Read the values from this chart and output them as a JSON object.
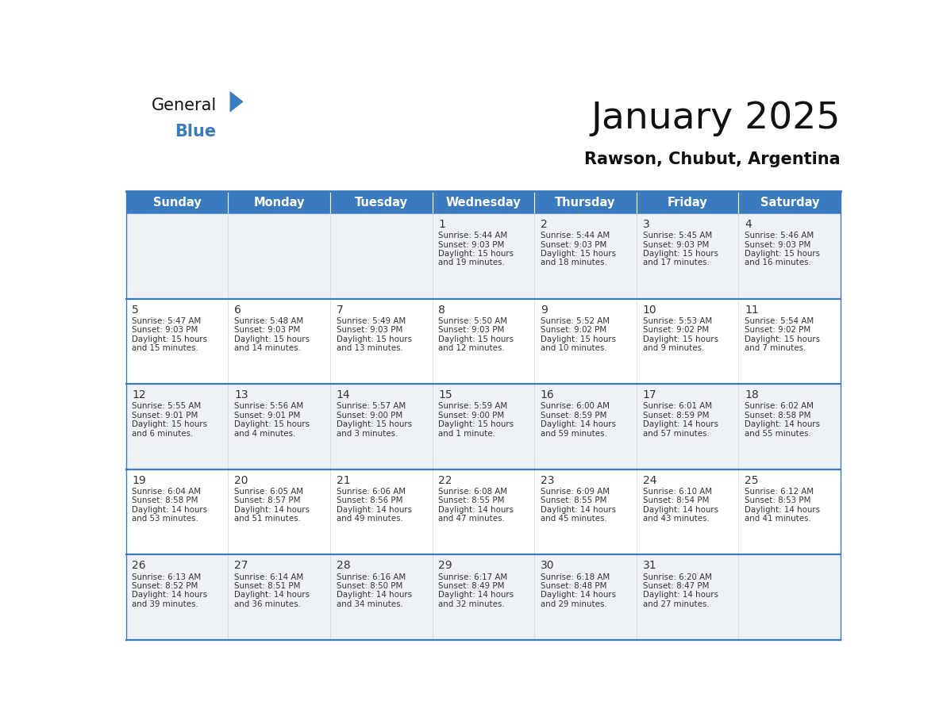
{
  "title": "January 2025",
  "subtitle": "Rawson, Chubut, Argentina",
  "days_of_week": [
    "Sunday",
    "Monday",
    "Tuesday",
    "Wednesday",
    "Thursday",
    "Friday",
    "Saturday"
  ],
  "header_bg": "#3a7bbf",
  "header_text": "#ffffff",
  "cell_bg_odd": "#eef2f7",
  "cell_bg_even": "#ffffff",
  "border_color": "#3a7bbf",
  "text_color": "#333333",
  "separator_color": "#3a7bbf",
  "calendar_data": [
    [
      null,
      null,
      null,
      {
        "day": 1,
        "sunrise": "5:44 AM",
        "sunset": "9:03 PM",
        "daylight_h": "15 hours",
        "daylight_m": "and 19 minutes."
      },
      {
        "day": 2,
        "sunrise": "5:44 AM",
        "sunset": "9:03 PM",
        "daylight_h": "15 hours",
        "daylight_m": "and 18 minutes."
      },
      {
        "day": 3,
        "sunrise": "5:45 AM",
        "sunset": "9:03 PM",
        "daylight_h": "15 hours",
        "daylight_m": "and 17 minutes."
      },
      {
        "day": 4,
        "sunrise": "5:46 AM",
        "sunset": "9:03 PM",
        "daylight_h": "15 hours",
        "daylight_m": "and 16 minutes."
      }
    ],
    [
      {
        "day": 5,
        "sunrise": "5:47 AM",
        "sunset": "9:03 PM",
        "daylight_h": "15 hours",
        "daylight_m": "and 15 minutes."
      },
      {
        "day": 6,
        "sunrise": "5:48 AM",
        "sunset": "9:03 PM",
        "daylight_h": "15 hours",
        "daylight_m": "and 14 minutes."
      },
      {
        "day": 7,
        "sunrise": "5:49 AM",
        "sunset": "9:03 PM",
        "daylight_h": "15 hours",
        "daylight_m": "and 13 minutes."
      },
      {
        "day": 8,
        "sunrise": "5:50 AM",
        "sunset": "9:03 PM",
        "daylight_h": "15 hours",
        "daylight_m": "and 12 minutes."
      },
      {
        "day": 9,
        "sunrise": "5:52 AM",
        "sunset": "9:02 PM",
        "daylight_h": "15 hours",
        "daylight_m": "and 10 minutes."
      },
      {
        "day": 10,
        "sunrise": "5:53 AM",
        "sunset": "9:02 PM",
        "daylight_h": "15 hours",
        "daylight_m": "and 9 minutes."
      },
      {
        "day": 11,
        "sunrise": "5:54 AM",
        "sunset": "9:02 PM",
        "daylight_h": "15 hours",
        "daylight_m": "and 7 minutes."
      }
    ],
    [
      {
        "day": 12,
        "sunrise": "5:55 AM",
        "sunset": "9:01 PM",
        "daylight_h": "15 hours",
        "daylight_m": "and 6 minutes."
      },
      {
        "day": 13,
        "sunrise": "5:56 AM",
        "sunset": "9:01 PM",
        "daylight_h": "15 hours",
        "daylight_m": "and 4 minutes."
      },
      {
        "day": 14,
        "sunrise": "5:57 AM",
        "sunset": "9:00 PM",
        "daylight_h": "15 hours",
        "daylight_m": "and 3 minutes."
      },
      {
        "day": 15,
        "sunrise": "5:59 AM",
        "sunset": "9:00 PM",
        "daylight_h": "15 hours",
        "daylight_m": "and 1 minute."
      },
      {
        "day": 16,
        "sunrise": "6:00 AM",
        "sunset": "8:59 PM",
        "daylight_h": "14 hours",
        "daylight_m": "and 59 minutes."
      },
      {
        "day": 17,
        "sunrise": "6:01 AM",
        "sunset": "8:59 PM",
        "daylight_h": "14 hours",
        "daylight_m": "and 57 minutes."
      },
      {
        "day": 18,
        "sunrise": "6:02 AM",
        "sunset": "8:58 PM",
        "daylight_h": "14 hours",
        "daylight_m": "and 55 minutes."
      }
    ],
    [
      {
        "day": 19,
        "sunrise": "6:04 AM",
        "sunset": "8:58 PM",
        "daylight_h": "14 hours",
        "daylight_m": "and 53 minutes."
      },
      {
        "day": 20,
        "sunrise": "6:05 AM",
        "sunset": "8:57 PM",
        "daylight_h": "14 hours",
        "daylight_m": "and 51 minutes."
      },
      {
        "day": 21,
        "sunrise": "6:06 AM",
        "sunset": "8:56 PM",
        "daylight_h": "14 hours",
        "daylight_m": "and 49 minutes."
      },
      {
        "day": 22,
        "sunrise": "6:08 AM",
        "sunset": "8:55 PM",
        "daylight_h": "14 hours",
        "daylight_m": "and 47 minutes."
      },
      {
        "day": 23,
        "sunrise": "6:09 AM",
        "sunset": "8:55 PM",
        "daylight_h": "14 hours",
        "daylight_m": "and 45 minutes."
      },
      {
        "day": 24,
        "sunrise": "6:10 AM",
        "sunset": "8:54 PM",
        "daylight_h": "14 hours",
        "daylight_m": "and 43 minutes."
      },
      {
        "day": 25,
        "sunrise": "6:12 AM",
        "sunset": "8:53 PM",
        "daylight_h": "14 hours",
        "daylight_m": "and 41 minutes."
      }
    ],
    [
      {
        "day": 26,
        "sunrise": "6:13 AM",
        "sunset": "8:52 PM",
        "daylight_h": "14 hours",
        "daylight_m": "and 39 minutes."
      },
      {
        "day": 27,
        "sunrise": "6:14 AM",
        "sunset": "8:51 PM",
        "daylight_h": "14 hours",
        "daylight_m": "and 36 minutes."
      },
      {
        "day": 28,
        "sunrise": "6:16 AM",
        "sunset": "8:50 PM",
        "daylight_h": "14 hours",
        "daylight_m": "and 34 minutes."
      },
      {
        "day": 29,
        "sunrise": "6:17 AM",
        "sunset": "8:49 PM",
        "daylight_h": "14 hours",
        "daylight_m": "and 32 minutes."
      },
      {
        "day": 30,
        "sunrise": "6:18 AM",
        "sunset": "8:48 PM",
        "daylight_h": "14 hours",
        "daylight_m": "and 29 minutes."
      },
      {
        "day": 31,
        "sunrise": "6:20 AM",
        "sunset": "8:47 PM",
        "daylight_h": "14 hours",
        "daylight_m": "and 27 minutes."
      },
      null
    ]
  ]
}
